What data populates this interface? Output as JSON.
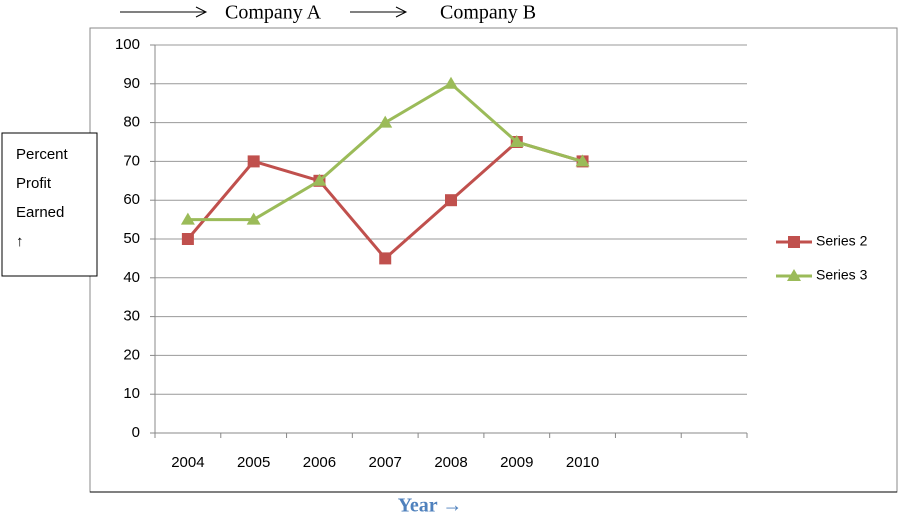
{
  "chart_data": {
    "type": "line",
    "top_labels": [
      "Company A",
      "Company B"
    ],
    "y_label_lines": [
      "Percent",
      "Profit",
      "Earned",
      "↑"
    ],
    "x_label": "Year →",
    "categories": [
      "2004",
      "2005",
      "2006",
      "2007",
      "2008",
      "2009",
      "2010",
      null,
      null
    ],
    "series": [
      {
        "name": "Series 2",
        "color": "#c0504d",
        "marker": "square",
        "values": [
          50,
          70,
          65,
          45,
          60,
          75,
          70,
          null,
          null
        ]
      },
      {
        "name": "Series 3",
        "color": "#9bbb59",
        "marker": "triangle",
        "values": [
          55,
          55,
          65,
          80,
          90,
          75,
          70,
          null,
          null
        ]
      }
    ],
    "ylim": [
      0,
      100
    ],
    "yticks": [
      0,
      10,
      20,
      30,
      40,
      50,
      60,
      70,
      80,
      90,
      100
    ],
    "grid": true,
    "legend": "right"
  }
}
